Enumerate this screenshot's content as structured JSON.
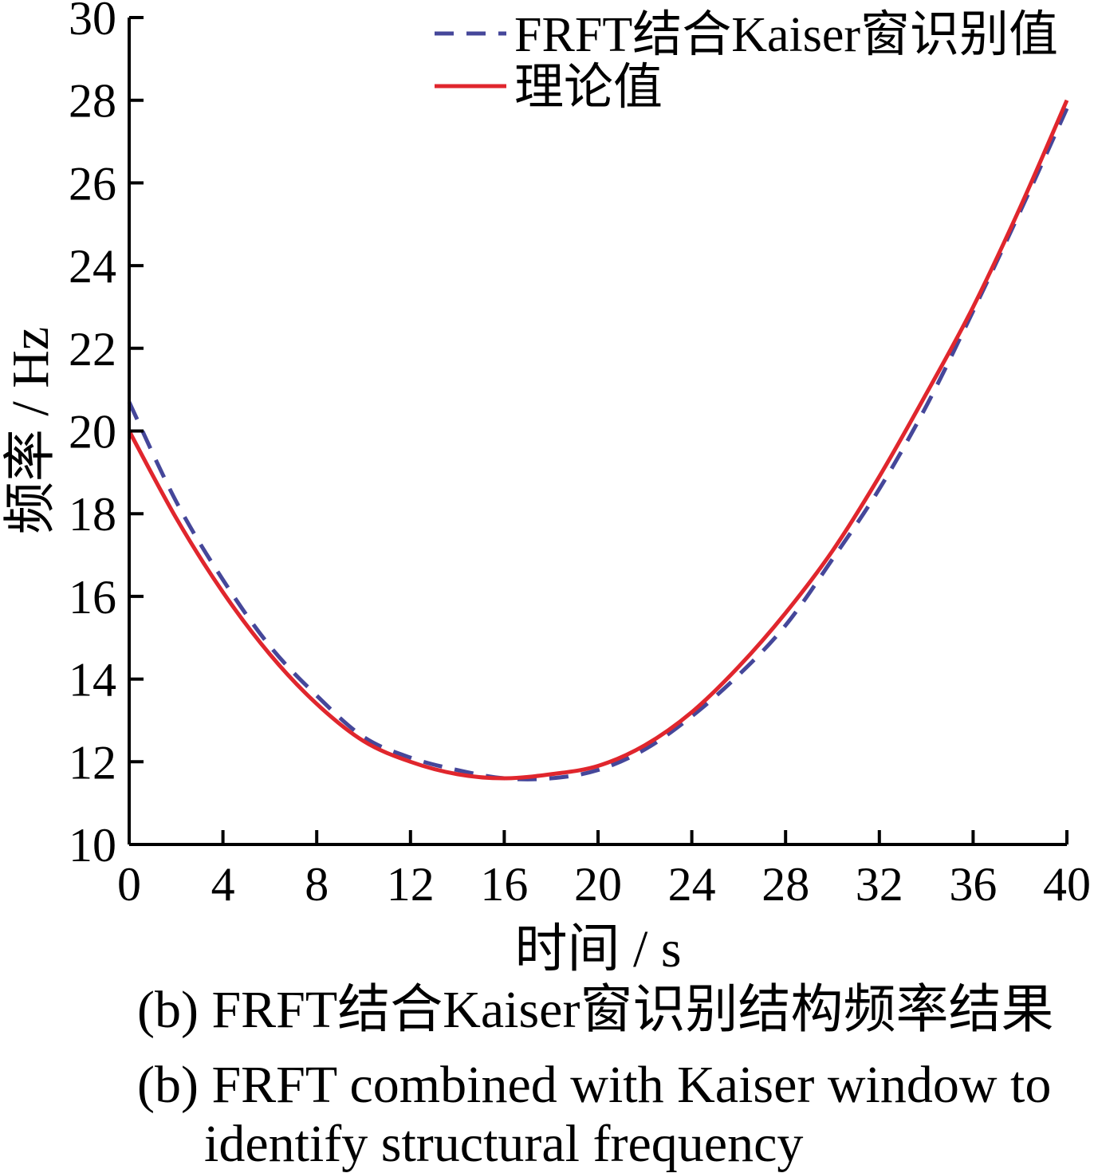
{
  "chart_data": {
    "type": "line",
    "xlabel": "时间 / s",
    "ylabel": "频率 / Hz",
    "xlim": [
      0,
      40
    ],
    "ylim": [
      10,
      30
    ],
    "xticks": [
      "0",
      "4",
      "8",
      "12",
      "16",
      "20",
      "24",
      "28",
      "32",
      "36",
      "40"
    ],
    "yticks": [
      "10",
      "12",
      "14",
      "16",
      "18",
      "20",
      "22",
      "24",
      "26",
      "28",
      "30"
    ],
    "grid": false,
    "legend_position": "top-right",
    "series": [
      {
        "name": "FRFT结合Kaiser窗识别值",
        "style": "dashed",
        "color": "#45479a",
        "x": [
          0,
          2,
          4,
          6,
          8,
          10,
          12,
          14,
          16,
          18,
          20,
          22,
          24,
          26,
          28,
          30,
          32,
          34,
          36,
          38,
          40
        ],
        "y": [
          20.7,
          18.3,
          16.4,
          14.8,
          13.6,
          12.6,
          12.1,
          11.8,
          11.6,
          11.6,
          11.8,
          12.3,
          13.1,
          14.1,
          15.3,
          16.9,
          18.6,
          20.6,
          22.9,
          25.3,
          27.8
        ]
      },
      {
        "name": "理论值",
        "style": "solid",
        "color": "#e0262d",
        "x": [
          0,
          2,
          4,
          6,
          8,
          10,
          12,
          14,
          16,
          18,
          20,
          22,
          24,
          26,
          28,
          30,
          32,
          34,
          36,
          38,
          40
        ],
        "y": [
          20.0,
          17.9,
          16.1,
          14.6,
          13.4,
          12.5,
          12.0,
          11.7,
          11.6,
          11.7,
          11.9,
          12.4,
          13.2,
          14.3,
          15.6,
          17.1,
          18.9,
          20.9,
          23.0,
          25.4,
          28.0
        ]
      }
    ]
  },
  "caption": {
    "zh": "(b) FRFT结合Kaiser窗识别结构频率结果",
    "en_line1": "(b) FRFT combined with Kaiser window to",
    "en_line2": "identify structural frequency"
  }
}
